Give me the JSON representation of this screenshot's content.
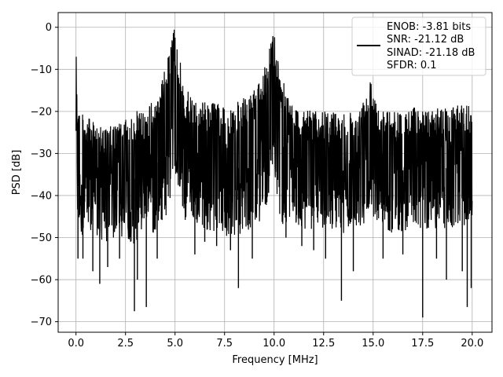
{
  "chart_data": {
    "type": "line",
    "title": "",
    "xlabel": "Frequency [MHz]",
    "ylabel": "PSD [dB]",
    "xlim": [
      -0.9,
      21.0
    ],
    "ylim": [
      -72.5,
      3.5
    ],
    "xticks": [
      0.0,
      2.5,
      5.0,
      7.5,
      10.0,
      12.5,
      15.0,
      17.5,
      20.0
    ],
    "xtick_labels": [
      "0.0",
      "2.5",
      "5.0",
      "7.5",
      "10.0",
      "12.5",
      "15.0",
      "17.5",
      "20.0"
    ],
    "yticks": [
      0,
      -10,
      -20,
      -30,
      -40,
      -50,
      -60,
      -70
    ],
    "ytick_labels": [
      "0",
      "−10",
      "−20",
      "−30",
      "−40",
      "−50",
      "−60",
      "−70"
    ],
    "grid": true,
    "legend_position": "top-right",
    "series_color": "#000000",
    "legend_entries": [
      "ENOB: -3.81 bits",
      "SNR: -21.12 dB",
      "SINAD: -21.18 dB",
      "SFDR: 0.1"
    ],
    "envelope_x": [
      0.0,
      0.1,
      0.5,
      1.0,
      1.5,
      2.0,
      2.5,
      3.0,
      3.5,
      4.0,
      4.3,
      4.6,
      4.8,
      4.95,
      5.1,
      5.3,
      5.6,
      6.0,
      7.0,
      8.0,
      8.8,
      9.3,
      9.6,
      9.8,
      9.95,
      10.1,
      10.3,
      10.6,
      11.0,
      12.0,
      13.0,
      13.5,
      14.0,
      14.4,
      14.7,
      14.85,
      15.0,
      15.3,
      16.0,
      17.0,
      18.0,
      19.0,
      19.6,
      20.0
    ],
    "envelope_upper": [
      -5.5,
      -18,
      -21,
      -23,
      -24,
      -23,
      -22,
      -20,
      -19,
      -17,
      -13,
      -8,
      -3,
      0,
      -3,
      -9,
      -15,
      -17,
      -18,
      -18,
      -16,
      -13,
      -8,
      -3,
      0,
      -3,
      -9,
      -14,
      -19,
      -20,
      -20,
      -19,
      -20,
      -19,
      -12,
      -10,
      -14,
      -19,
      -20,
      -19,
      -19,
      -19,
      -18,
      -19
    ],
    "envelope_lower": [
      -33,
      -49,
      -50,
      -50,
      -52,
      -50,
      -50,
      -52,
      -46,
      -50,
      -46,
      -45,
      -40,
      -35,
      -38,
      -43,
      -48,
      -47,
      -49,
      -50,
      -48,
      -46,
      -43,
      -38,
      -35,
      -40,
      -46,
      -48,
      -48,
      -48,
      -48,
      -49,
      -48,
      -48,
      -46,
      -43,
      -45,
      -47,
      -49,
      -48,
      -48,
      -48,
      -48,
      -45
    ],
    "spikes": [
      {
        "x": 0.1,
        "y": -55
      },
      {
        "x": 0.35,
        "y": -55
      },
      {
        "x": 0.85,
        "y": -58
      },
      {
        "x": 1.2,
        "y": -61
      },
      {
        "x": 1.6,
        "y": -57
      },
      {
        "x": 2.2,
        "y": -55
      },
      {
        "x": 2.95,
        "y": -67.5
      },
      {
        "x": 3.1,
        "y": -60
      },
      {
        "x": 3.55,
        "y": -66.5
      },
      {
        "x": 4.1,
        "y": -55
      },
      {
        "x": 6.0,
        "y": -54
      },
      {
        "x": 6.5,
        "y": -51
      },
      {
        "x": 7.1,
        "y": -52
      },
      {
        "x": 7.8,
        "y": -53
      },
      {
        "x": 8.2,
        "y": -62
      },
      {
        "x": 8.9,
        "y": -55
      },
      {
        "x": 10.6,
        "y": -50
      },
      {
        "x": 11.4,
        "y": -52
      },
      {
        "x": 12.0,
        "y": -53
      },
      {
        "x": 12.6,
        "y": -55
      },
      {
        "x": 13.4,
        "y": -65
      },
      {
        "x": 14.0,
        "y": -58
      },
      {
        "x": 15.5,
        "y": -55
      },
      {
        "x": 16.5,
        "y": -54
      },
      {
        "x": 17.5,
        "y": -69
      },
      {
        "x": 18.2,
        "y": -55
      },
      {
        "x": 18.7,
        "y": -60
      },
      {
        "x": 19.5,
        "y": -58
      },
      {
        "x": 19.75,
        "y": -66.5
      },
      {
        "x": 19.95,
        "y": -62
      }
    ]
  }
}
